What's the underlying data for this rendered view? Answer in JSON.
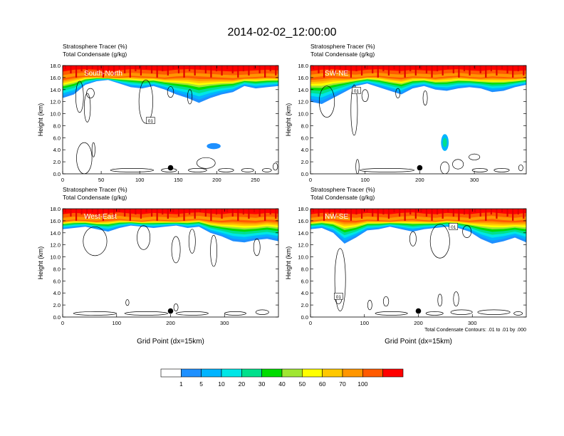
{
  "figure_title": "2014-02-02_12:00:00",
  "colors": {
    "fill_palette": [
      "#ffffff",
      "#1e90ff",
      "#00b4ff",
      "#00e6e6",
      "#00e08c",
      "#00dc00",
      "#a0e632",
      "#ffff00",
      "#ffc800",
      "#ff9600",
      "#ff5a00",
      "#ff0000"
    ],
    "contour": "#000000",
    "marker": "#000000"
  },
  "colorbar": {
    "levels": [
      "1",
      "5",
      "10",
      "20",
      "30",
      "40",
      "50",
      "60",
      "70",
      "100"
    ]
  },
  "chart_data": [
    {
      "type": "heatmap",
      "subtitle_line1": "Stratosphere Tracer   (%)",
      "subtitle_line2": "Total Condensate   (g/kg)",
      "panel_label": "South-North",
      "ylabel": "Height (km)",
      "xlabel": "",
      "xlim": [
        0,
        280
      ],
      "ylim": [
        0,
        18
      ],
      "xticks": [
        0,
        50,
        100,
        150,
        200,
        250
      ],
      "xtick_labels": [
        "0",
        "50",
        "100",
        "150",
        "200",
        "250"
      ],
      "yticks": [
        0,
        2,
        4,
        6,
        8,
        10,
        12,
        14,
        16,
        18
      ],
      "ytick_labels": [
        "0.0",
        "2.0",
        "4.0",
        "6.0",
        "8.0",
        "10.0",
        "12.0",
        "14.0",
        "16.0",
        "18.0"
      ],
      "tropopause_km": [
        15.9,
        16.2,
        16.3,
        16.2,
        16.0,
        16.1,
        16.3,
        16.2,
        16.1,
        16.0,
        16.2,
        16.3,
        16.2,
        16.1,
        16.0,
        15.9,
        16.0,
        16.1,
        16.2,
        16.1
      ],
      "intrusion_bottom_km": [
        12.6,
        13.2,
        14.8,
        15.4,
        15.6,
        15.0,
        14.4,
        14.2,
        14.6,
        14.0,
        13.2,
        12.6,
        11.8,
        12.6,
        13.2,
        13.6,
        14.6,
        14.2,
        14.4,
        14.6
      ],
      "blobs": [
        {
          "x": 196,
          "y": 4.6,
          "rx": 9,
          "ry": 0.5,
          "level": 1
        }
      ],
      "condensate_contours": [
        {
          "x": 22,
          "y": 12.8,
          "rx": 5,
          "ry": 2.6
        },
        {
          "x": 32,
          "y": 11.0,
          "rx": 4,
          "ry": 2.4
        },
        {
          "x": 36,
          "y": 13.4,
          "rx": 5,
          "ry": 0.8
        },
        {
          "x": 108,
          "y": 12.0,
          "rx": 9,
          "ry": 3.6
        },
        {
          "x": 140,
          "y": 13.6,
          "rx": 4,
          "ry": 0.9
        },
        {
          "x": 165,
          "y": 12.8,
          "rx": 3,
          "ry": 1.2
        },
        {
          "x": 28,
          "y": 2.6,
          "rx": 10,
          "ry": 2.6
        },
        {
          "x": 40,
          "y": 4.0,
          "rx": 2,
          "ry": 1.2
        },
        {
          "x": 90,
          "y": 0.6,
          "rx": 28,
          "ry": 0.3
        },
        {
          "x": 138,
          "y": 0.6,
          "rx": 10,
          "ry": 0.3
        },
        {
          "x": 186,
          "y": 1.8,
          "rx": 12,
          "ry": 0.9
        },
        {
          "x": 175,
          "y": 0.6,
          "rx": 12,
          "ry": 0.3
        },
        {
          "x": 212,
          "y": 0.6,
          "rx": 10,
          "ry": 0.3
        },
        {
          "x": 240,
          "y": 0.6,
          "rx": 8,
          "ry": 0.3
        },
        {
          "x": 265,
          "y": 0.6,
          "rx": 6,
          "ry": 0.3
        },
        {
          "x": 276,
          "y": 1.2,
          "rx": 3,
          "ry": 0.6
        }
      ],
      "contour_label": {
        "text": "01",
        "x": 114,
        "y": 8.8
      },
      "marker": {
        "x": 140,
        "y": 1.0
      }
    },
    {
      "type": "heatmap",
      "subtitle_line1": "Stratosphere Tracer   (%)",
      "subtitle_line2": "Total Condensate   (g/kg)",
      "panel_label": "SW-NE",
      "ylabel": "Height (km)",
      "xlabel": "",
      "xlim": [
        0,
        395
      ],
      "ylim": [
        0,
        18
      ],
      "xticks": [
        0,
        100,
        200,
        300
      ],
      "xtick_labels": [
        "0",
        "100",
        "200",
        "300"
      ],
      "yticks": [
        0,
        2,
        4,
        6,
        8,
        10,
        12,
        14,
        16,
        18
      ],
      "ytick_labels": [
        "0.0",
        "2.0",
        "4.0",
        "6.0",
        "8.0",
        "10.0",
        "12.0",
        "14.0",
        "16.0",
        "18.0"
      ],
      "tropopause_km": [
        16.0,
        16.2,
        16.3,
        16.1,
        16.0,
        16.2,
        16.3,
        16.1,
        16.0,
        16.2,
        16.1,
        16.0,
        16.2,
        16.3,
        16.1,
        16.0,
        16.2,
        16.1,
        16.0,
        16.1
      ],
      "intrusion_bottom_km": [
        12.0,
        11.6,
        12.6,
        13.6,
        14.6,
        15.0,
        14.4,
        13.8,
        13.2,
        14.2,
        14.6,
        14.0,
        13.8,
        14.2,
        14.4,
        14.2,
        13.6,
        13.8,
        14.4,
        14.8
      ],
      "blobs": [
        {
          "x": 246,
          "y": 5.2,
          "rx": 7,
          "ry": 1.4,
          "level": 2
        }
      ],
      "condensate_contours": [
        {
          "x": 30,
          "y": 12.0,
          "rx": 14,
          "ry": 2.6
        },
        {
          "x": 80,
          "y": 10.6,
          "rx": 6,
          "ry": 4.2
        },
        {
          "x": 100,
          "y": 13.0,
          "rx": 6,
          "ry": 1.0
        },
        {
          "x": 160,
          "y": 13.4,
          "rx": 4,
          "ry": 0.8
        },
        {
          "x": 210,
          "y": 12.6,
          "rx": 4,
          "ry": 1.2
        },
        {
          "x": 86,
          "y": 1.2,
          "rx": 3,
          "ry": 1.2
        },
        {
          "x": 140,
          "y": 0.6,
          "rx": 50,
          "ry": 0.3
        },
        {
          "x": 246,
          "y": 1.0,
          "rx": 8,
          "ry": 1.0
        },
        {
          "x": 270,
          "y": 1.6,
          "rx": 10,
          "ry": 0.8
        },
        {
          "x": 300,
          "y": 2.8,
          "rx": 10,
          "ry": 0.5
        },
        {
          "x": 310,
          "y": 0.6,
          "rx": 14,
          "ry": 0.3
        },
        {
          "x": 350,
          "y": 0.6,
          "rx": 14,
          "ry": 0.3
        },
        {
          "x": 385,
          "y": 1.0,
          "rx": 4,
          "ry": 0.5
        }
      ],
      "contour_label": {
        "text": "01",
        "x": 84,
        "y": 13.8
      },
      "marker": {
        "x": 200,
        "y": 1.0
      }
    },
    {
      "type": "heatmap",
      "subtitle_line1": "Stratosphere Tracer   (%)",
      "subtitle_line2": "Total Condensate   (g/kg)",
      "panel_label": "West-East",
      "ylabel": "Height (km)",
      "xlabel": "Grid Point (dx=15km)",
      "xlim": [
        0,
        400
      ],
      "ylim": [
        0,
        18
      ],
      "xticks": [
        0,
        100,
        200,
        300
      ],
      "xtick_labels": [
        "0",
        "100",
        "200",
        "300"
      ],
      "yticks": [
        0,
        2,
        4,
        6,
        8,
        10,
        12,
        14,
        16,
        18
      ],
      "ytick_labels": [
        "0.0",
        "2.0",
        "4.0",
        "6.0",
        "8.0",
        "10.0",
        "12.0",
        "14.0",
        "16.0",
        "18.0"
      ],
      "tropopause_km": [
        16.0,
        16.2,
        16.1,
        16.0,
        16.2,
        16.3,
        16.1,
        16.0,
        16.2,
        16.1,
        16.0,
        16.2,
        16.3,
        16.1,
        16.0,
        16.2,
        16.1,
        16.0,
        16.2,
        16.1
      ],
      "intrusion_bottom_km": [
        14.6,
        14.8,
        15.0,
        14.6,
        14.2,
        14.8,
        15.2,
        15.0,
        14.8,
        15.0,
        15.2,
        14.8,
        15.0,
        14.0,
        13.4,
        12.6,
        12.4,
        12.8,
        13.0,
        12.6
      ],
      "blobs": [],
      "condensate_contours": [
        {
          "x": 60,
          "y": 12.6,
          "rx": 22,
          "ry": 2.4
        },
        {
          "x": 150,
          "y": 13.2,
          "rx": 12,
          "ry": 2.0
        },
        {
          "x": 210,
          "y": 11.2,
          "rx": 8,
          "ry": 2.2
        },
        {
          "x": 240,
          "y": 12.6,
          "rx": 6,
          "ry": 2.0
        },
        {
          "x": 280,
          "y": 11.0,
          "rx": 6,
          "ry": 2.6
        },
        {
          "x": 360,
          "y": 11.6,
          "rx": 6,
          "ry": 1.4
        },
        {
          "x": 60,
          "y": 0.6,
          "rx": 40,
          "ry": 0.3
        },
        {
          "x": 155,
          "y": 0.6,
          "rx": 40,
          "ry": 0.3
        },
        {
          "x": 240,
          "y": 0.6,
          "rx": 30,
          "ry": 0.3
        },
        {
          "x": 120,
          "y": 2.4,
          "rx": 3,
          "ry": 0.5
        },
        {
          "x": 210,
          "y": 1.6,
          "rx": 4,
          "ry": 0.6
        },
        {
          "x": 320,
          "y": 0.6,
          "rx": 20,
          "ry": 0.3
        },
        {
          "x": 370,
          "y": 0.8,
          "rx": 12,
          "ry": 0.4
        }
      ],
      "contour_label": null,
      "marker": {
        "x": 200,
        "y": 1.0
      }
    },
    {
      "type": "heatmap",
      "subtitle_line1": "Stratosphere Tracer   (%)",
      "subtitle_line2": "Total Condensate   (g/kg)",
      "panel_label": "NW-SE",
      "ylabel": "Height (km)",
      "xlabel": "Grid Point (dx=15km)",
      "xlim": [
        0,
        400
      ],
      "ylim": [
        0,
        18
      ],
      "xticks": [
        0,
        100,
        200,
        300
      ],
      "xtick_labels": [
        "0",
        "100",
        "200",
        "300"
      ],
      "yticks": [
        0,
        2,
        4,
        6,
        8,
        10,
        12,
        14,
        16,
        18
      ],
      "ytick_labels": [
        "0.0",
        "2.0",
        "4.0",
        "6.0",
        "8.0",
        "10.0",
        "12.0",
        "14.0",
        "16.0",
        "18.0"
      ],
      "tropopause_km": [
        16.0,
        16.2,
        16.3,
        16.1,
        16.0,
        16.2,
        16.1,
        16.0,
        16.2,
        16.3,
        16.1,
        16.0,
        16.2,
        16.1,
        16.0,
        16.2,
        16.3,
        16.1,
        16.0,
        16.2
      ],
      "intrusion_bottom_km": [
        14.6,
        14.8,
        14.0,
        12.2,
        13.2,
        14.4,
        14.6,
        15.0,
        14.6,
        14.2,
        14.6,
        14.8,
        15.0,
        14.8,
        14.2,
        13.0,
        12.2,
        12.6,
        13.2,
        12.4
      ],
      "blobs": [],
      "condensate_contours": [
        {
          "x": 55,
          "y": 6.2,
          "rx": 10,
          "ry": 5.2
        },
        {
          "x": 190,
          "y": 13.0,
          "rx": 6,
          "ry": 1.2
        },
        {
          "x": 240,
          "y": 12.6,
          "rx": 18,
          "ry": 2.8
        },
        {
          "x": 290,
          "y": 14.2,
          "rx": 8,
          "ry": 1.0
        },
        {
          "x": 52,
          "y": 3.0,
          "rx": 6,
          "ry": 0.8
        },
        {
          "x": 110,
          "y": 2.0,
          "rx": 4,
          "ry": 0.8
        },
        {
          "x": 140,
          "y": 2.6,
          "rx": 5,
          "ry": 0.8
        },
        {
          "x": 240,
          "y": 2.8,
          "rx": 4,
          "ry": 1.0
        },
        {
          "x": 270,
          "y": 3.0,
          "rx": 5,
          "ry": 1.2
        },
        {
          "x": 150,
          "y": 0.6,
          "rx": 30,
          "ry": 0.3
        },
        {
          "x": 230,
          "y": 0.6,
          "rx": 16,
          "ry": 0.3
        },
        {
          "x": 280,
          "y": 0.8,
          "rx": 20,
          "ry": 0.4
        },
        {
          "x": 340,
          "y": 0.8,
          "rx": 30,
          "ry": 0.4
        },
        {
          "x": 385,
          "y": 0.6,
          "rx": 8,
          "ry": 0.3
        }
      ],
      "contour_label": {
        "text": "01",
        "x": 52,
        "y": 3.4
      },
      "contour_label_2": {
        "text": "01",
        "x": 265,
        "y": 15.0
      },
      "marker": {
        "x": 200,
        "y": 1.0
      },
      "footnote": "Total Condensate Contours: .01 to .01 by .000"
    }
  ]
}
